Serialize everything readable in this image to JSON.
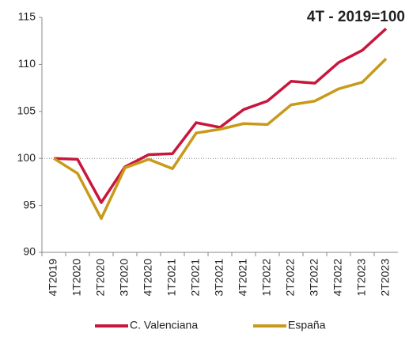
{
  "chart_data": {
    "type": "line",
    "title": "4T - 2019=100",
    "categories": [
      "4T2019",
      "1T2020",
      "2T2020",
      "3T2020",
      "4T2020",
      "1T2021",
      "2T2021",
      "3T2021",
      "4T2021",
      "1T2022",
      "2T2022",
      "3T2022",
      "4T2022",
      "1T2023",
      "2T2023"
    ],
    "series": [
      {
        "name": "C. Valenciana",
        "color": "#c8163c",
        "values": [
          100,
          99.9,
          95.3,
          99.1,
          100.4,
          100.5,
          103.8,
          103.3,
          105.2,
          106.1,
          108.2,
          108.0,
          110.2,
          111.5,
          113.8
        ]
      },
      {
        "name": "España",
        "color": "#c99a1a",
        "values": [
          100,
          98.4,
          93.6,
          99.0,
          99.9,
          98.9,
          102.7,
          103.1,
          103.7,
          103.6,
          105.7,
          106.1,
          107.4,
          108.1,
          110.6
        ]
      }
    ],
    "ylim": [
      90,
      115
    ],
    "yticks": [
      90,
      95,
      100,
      105,
      110,
      115
    ],
    "reference_line": 100,
    "grid": false,
    "legend": "bottom"
  }
}
